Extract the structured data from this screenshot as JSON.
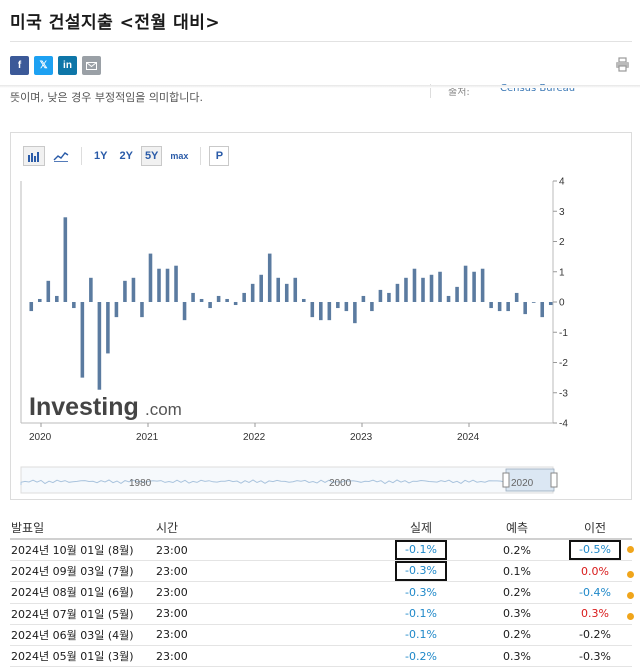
{
  "page": {
    "title": "미국 건설지출 <전월 대비>",
    "description": "뜻이며, 낮은 경우 부정적임을 의미합니다.",
    "source_label": "출처:",
    "source": "Census Bureau"
  },
  "share": {
    "facebook": "f",
    "twitter": "𝕏",
    "linkedin": "in",
    "email_icon": "envelope-icon",
    "print_icon": "printer-icon"
  },
  "toolbar": {
    "bar_icon": "bar-chart-icon",
    "line_icon": "line-chart-icon",
    "ranges": [
      "1Y",
      "2Y",
      "5Y",
      "max"
    ],
    "active_range": "5Y",
    "p_label": "P"
  },
  "watermark": {
    "brand": "Investing",
    "suffix": ".com"
  },
  "navigator": {
    "labels": [
      "1980",
      "2000",
      "2020"
    ]
  },
  "chart_data": {
    "type": "bar",
    "color": "#5b7ba0",
    "x_labels": [
      "2020",
      "2021",
      "2022",
      "2023",
      "2024"
    ],
    "y_ticks": [
      4,
      3,
      2,
      1,
      0,
      -1,
      -2,
      -3,
      -4
    ],
    "ylim": [
      -4,
      4
    ],
    "grid": false,
    "values": [
      -0.3,
      0.1,
      0.7,
      0.2,
      2.8,
      -0.2,
      -2.5,
      0.8,
      -2.9,
      -1.7,
      -0.5,
      0.7,
      0.8,
      -0.5,
      1.6,
      1.1,
      1.1,
      1.2,
      -0.6,
      0.3,
      0.1,
      -0.2,
      0.2,
      0.1,
      -0.1,
      0.3,
      0.6,
      0.9,
      1.6,
      0.8,
      0.6,
      0.8,
      0.1,
      -0.5,
      -0.6,
      -0.6,
      -0.2,
      -0.3,
      -0.7,
      0.2,
      -0.3,
      0.4,
      0.3,
      0.6,
      0.8,
      1.1,
      0.8,
      0.9,
      1.0,
      0.2,
      0.5,
      1.2,
      1.0,
      1.1,
      -0.2,
      -0.3,
      -0.3,
      0.3,
      -0.4,
      0.0,
      -0.5,
      -0.1
    ]
  },
  "table": {
    "headers": {
      "date": "발표일",
      "time": "시간",
      "actual": "실제",
      "forecast": "예측",
      "previous": "이전"
    },
    "rows": [
      {
        "date": "2024년 10월 01일 (8월)",
        "time": "23:00",
        "actual": "-0.1%",
        "forecast": "0.2%",
        "previous": "-0.5%"
      },
      {
        "date": "2024년 09월 03일 (7월)",
        "time": "23:00",
        "actual": "-0.3%",
        "forecast": "0.1%",
        "previous": "0.0%"
      },
      {
        "date": "2024년 08월 01일 (6월)",
        "time": "23:00",
        "actual": "-0.3%",
        "forecast": "0.2%",
        "previous": "-0.4%"
      },
      {
        "date": "2024년 07월 01일 (5월)",
        "time": "23:00",
        "actual": "-0.1%",
        "forecast": "0.3%",
        "previous": "0.3%"
      },
      {
        "date": "2024년 06월 03일 (4월)",
        "time": "23:00",
        "actual": "-0.1%",
        "forecast": "0.2%",
        "previous": "-0.2%"
      },
      {
        "date": "2024년 05월 01일 (3월)",
        "time": "23:00",
        "actual": "-0.2%",
        "forecast": "0.3%",
        "previous": "-0.3%"
      }
    ]
  }
}
